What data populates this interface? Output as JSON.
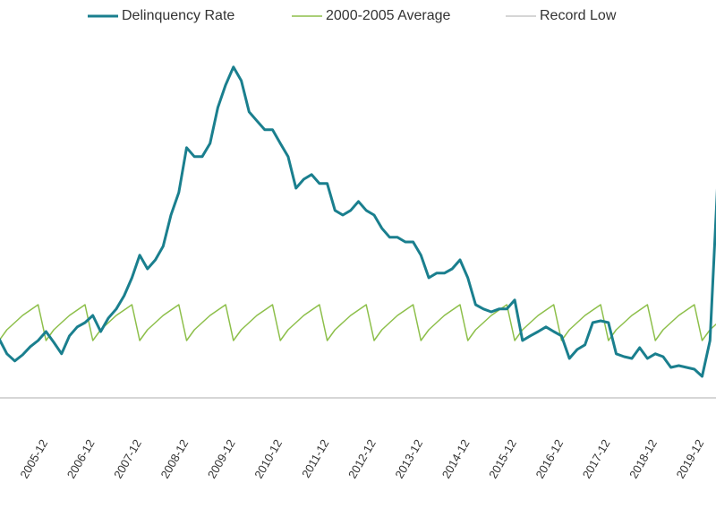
{
  "chart_data": {
    "type": "line",
    "categories": [
      null,
      null,
      null,
      null,
      null,
      "2005-12",
      null,
      null,
      null,
      null,
      null,
      "2006-12",
      null,
      null,
      null,
      null,
      null,
      "2007-12",
      null,
      null,
      null,
      null,
      null,
      "2008-12",
      null,
      null,
      null,
      null,
      null,
      "2009-12",
      null,
      null,
      null,
      null,
      null,
      "2010-12",
      null,
      null,
      null,
      null,
      null,
      "2011-12",
      null,
      null,
      null,
      null,
      null,
      "2012-12",
      null,
      null,
      null,
      null,
      null,
      "2013-12",
      null,
      null,
      null,
      null,
      null,
      "2014-12",
      null,
      null,
      null,
      null,
      null,
      "2015-12",
      null,
      null,
      null,
      null,
      null,
      "2016-12",
      null,
      null,
      null,
      null,
      null,
      "2017-12",
      null,
      null,
      null,
      null,
      null,
      "2018-12",
      null,
      null,
      null,
      null,
      null,
      "2019-12",
      null,
      null,
      null
    ],
    "series": [
      {
        "name": "Delinquency Rate",
        "color": "#1a7f8e",
        "values": [
          2.55,
          2.13,
          1.93,
          2.1,
          2.33,
          2.5,
          2.75,
          2.45,
          2.13,
          2.63,
          2.88,
          3.0,
          3.2,
          2.75,
          3.13,
          3.38,
          3.75,
          4.25,
          4.88,
          4.5,
          4.75,
          5.13,
          6.0,
          6.63,
          7.88,
          7.63,
          7.63,
          8.0,
          9.0,
          9.63,
          10.13,
          9.75,
          8.88,
          8.63,
          8.38,
          8.38,
          8.0,
          7.63,
          6.75,
          7.0,
          7.13,
          6.88,
          6.88,
          6.13,
          6.0,
          6.13,
          6.38,
          6.13,
          6.0,
          5.63,
          5.38,
          5.38,
          5.25,
          5.25,
          4.88,
          4.25,
          4.38,
          4.38,
          4.5,
          4.75,
          4.25,
          3.5,
          3.38,
          3.3,
          3.38,
          3.38,
          3.63,
          2.5,
          2.63,
          2.75,
          2.88,
          2.75,
          2.63,
          2.0,
          2.25,
          2.38,
          3.0,
          3.05,
          3.0,
          2.13,
          2.05,
          2.0,
          2.3,
          2.0,
          2.13,
          2.05,
          1.75,
          1.8,
          1.75,
          1.7,
          1.5,
          2.5,
          7.0
        ]
      },
      {
        "name": "2000-2005 Average",
        "color": "#8dbf4a",
        "values": [
          2.5,
          2.8,
          3.0,
          3.2,
          3.35,
          3.5,
          2.5,
          2.8,
          3.0,
          3.2,
          3.35,
          3.5,
          2.5,
          2.8,
          3.0,
          3.2,
          3.35,
          3.5,
          2.5,
          2.8,
          3.0,
          3.2,
          3.35,
          3.5,
          2.5,
          2.8,
          3.0,
          3.2,
          3.35,
          3.5,
          2.5,
          2.8,
          3.0,
          3.2,
          3.35,
          3.5,
          2.5,
          2.8,
          3.0,
          3.2,
          3.35,
          3.5,
          2.5,
          2.8,
          3.0,
          3.2,
          3.35,
          3.5,
          2.5,
          2.8,
          3.0,
          3.2,
          3.35,
          3.5,
          2.5,
          2.8,
          3.0,
          3.2,
          3.35,
          3.5,
          2.5,
          2.8,
          3.0,
          3.2,
          3.35,
          3.5,
          2.5,
          2.8,
          3.0,
          3.2,
          3.35,
          3.5,
          2.5,
          2.8,
          3.0,
          3.2,
          3.35,
          3.5,
          2.5,
          2.8,
          3.0,
          3.2,
          3.35,
          3.5,
          2.5,
          2.8,
          3.0,
          3.2,
          3.35,
          3.5,
          2.5,
          2.8,
          3.0
        ]
      }
    ],
    "record_low": {
      "name": "Record Low",
      "color": "#c8c8c8",
      "value": 0.9
    },
    "ylim": [
      0,
      12
    ]
  }
}
